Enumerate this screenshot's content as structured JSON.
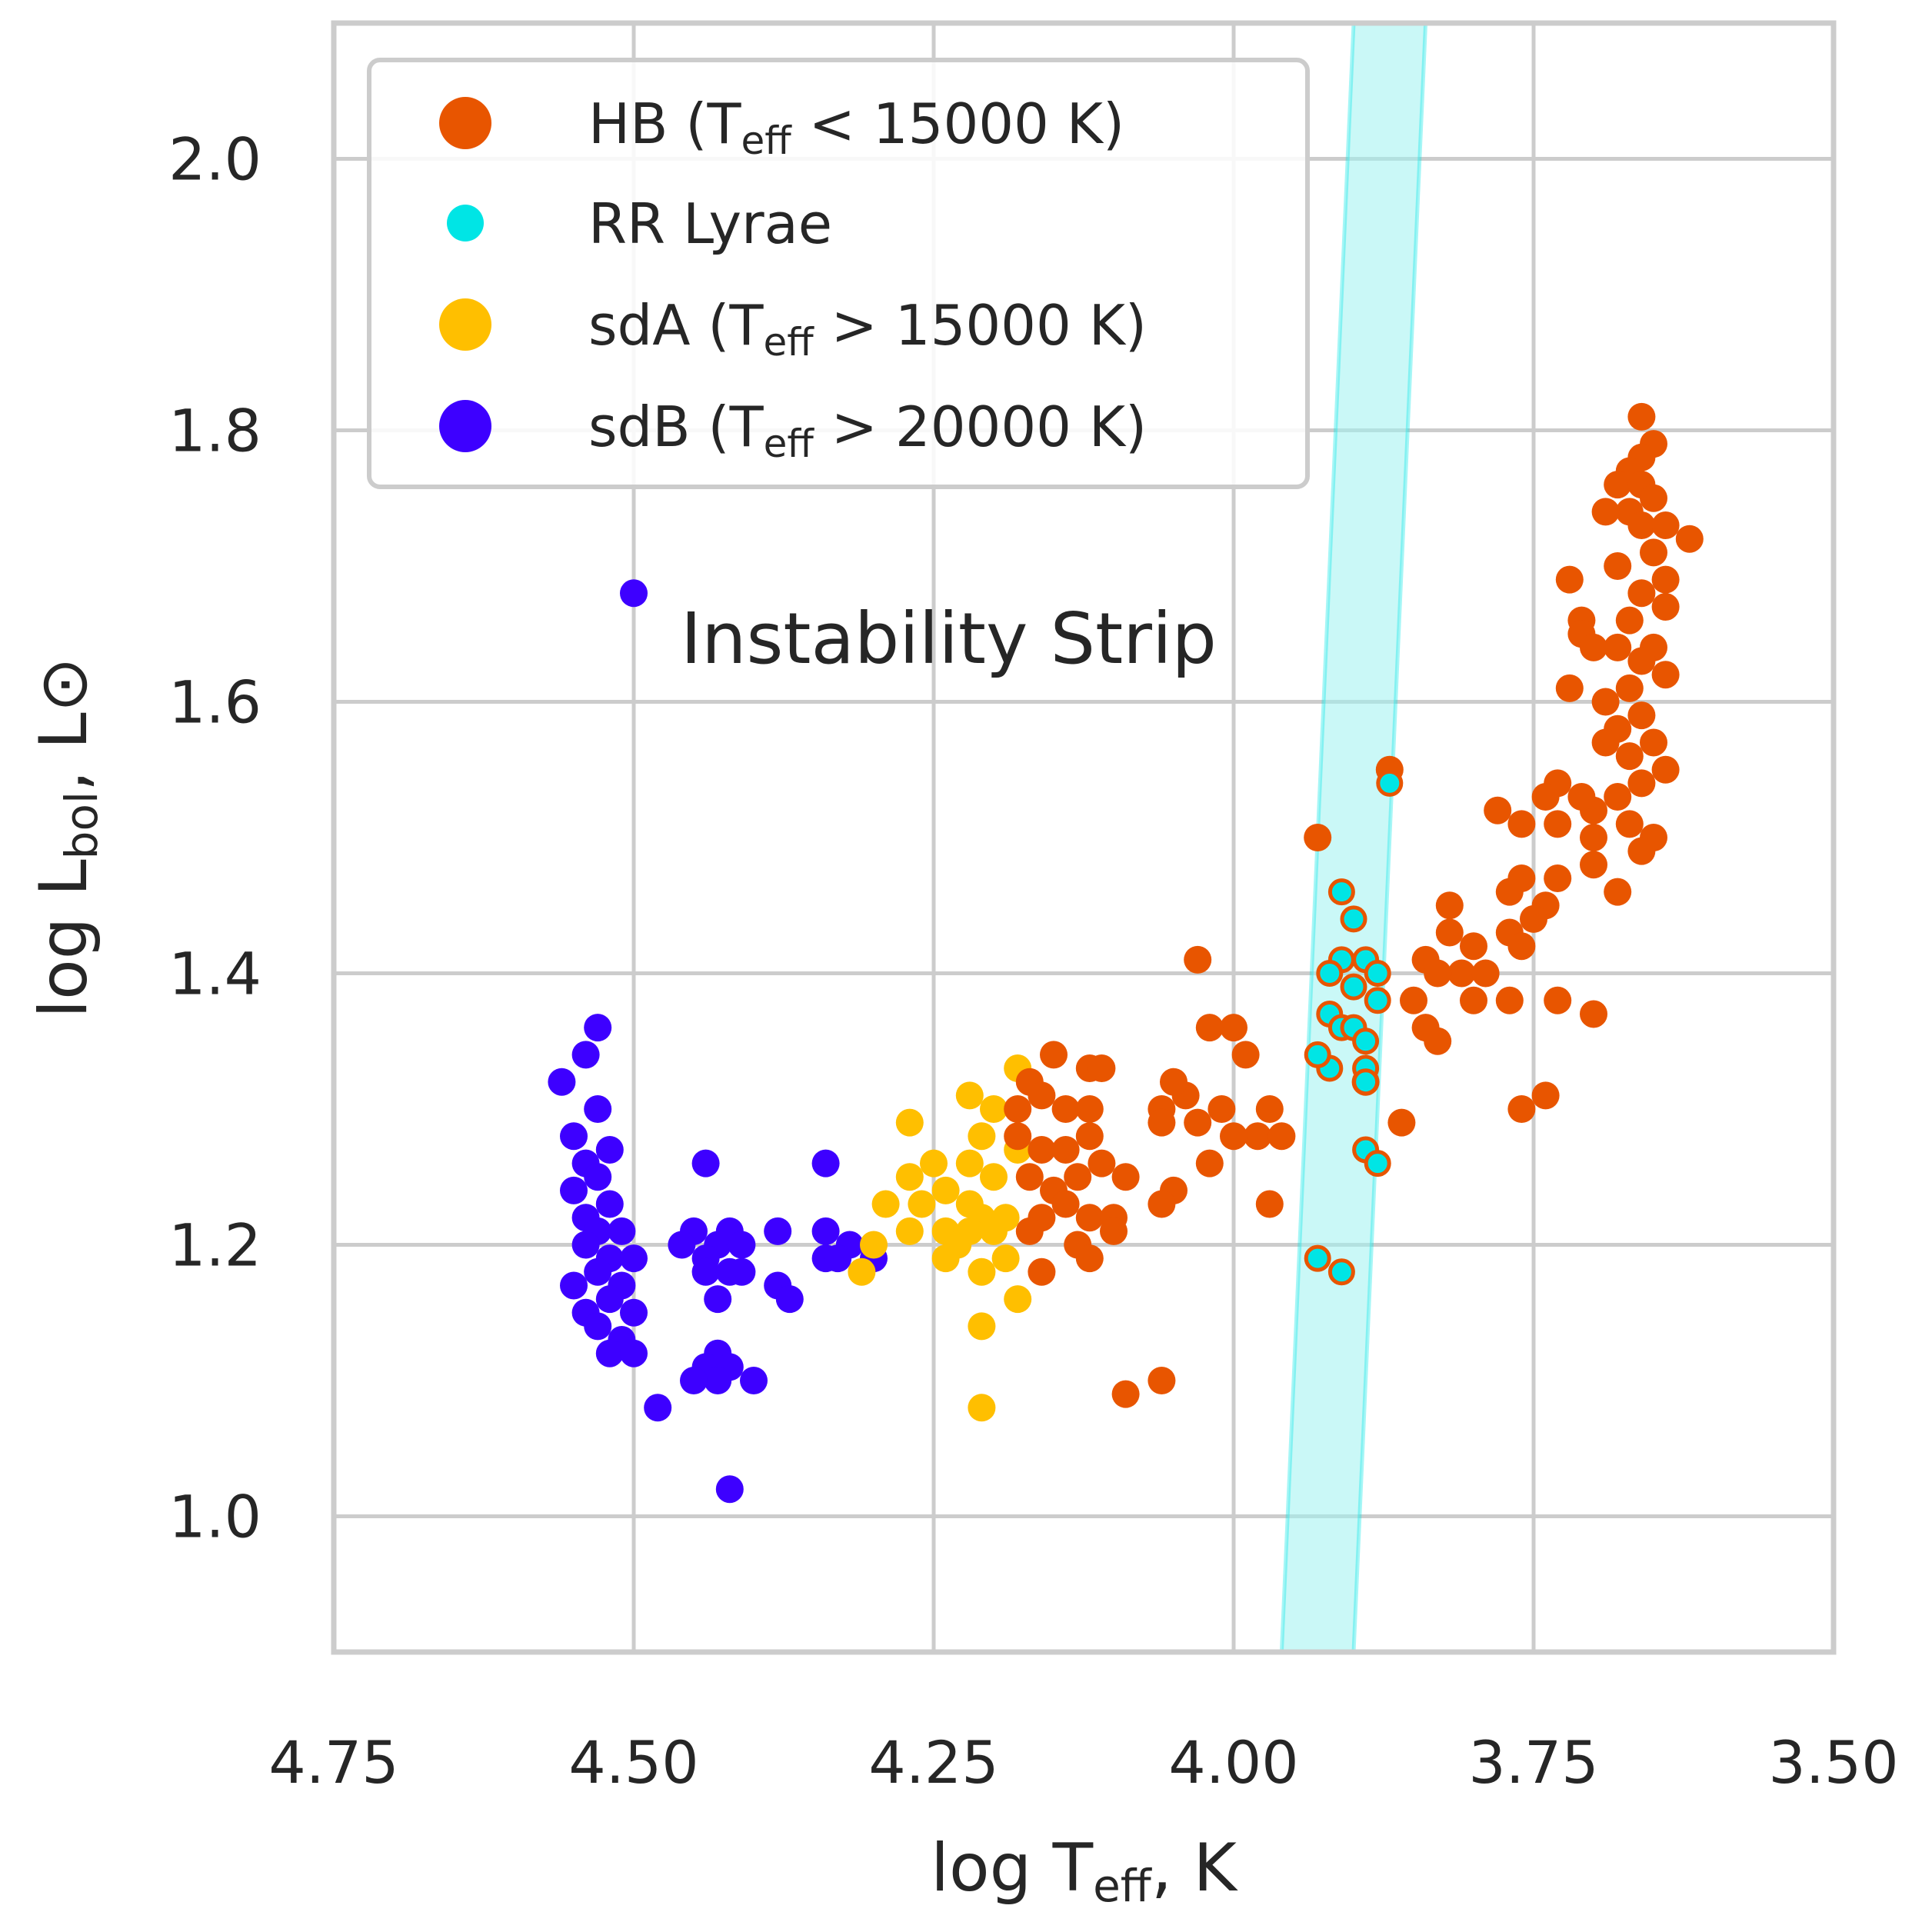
{
  "chart_data": {
    "type": "scatter",
    "title": "",
    "xlabel": "log T",
    "xlabel_sub": "eff",
    "xlabel_suffix": ", K",
    "ylabel": "log L",
    "ylabel_sub": "bol",
    "ylabel_suffix": ", L⊙",
    "xlim": [
      4.75,
      3.5
    ],
    "ylim": [
      0.9,
      2.1
    ],
    "xticks": [
      4.75,
      4.5,
      4.25,
      4.0,
      3.75,
      3.5
    ],
    "xtick_labels": [
      "4.75",
      "4.50",
      "4.25",
      "4.00",
      "3.75",
      "3.50"
    ],
    "yticks": [
      1.0,
      1.2,
      1.4,
      1.6,
      1.8,
      2.0
    ],
    "ytick_labels": [
      "1.0",
      "1.2",
      "1.4",
      "1.6",
      "1.8",
      "2.0"
    ],
    "grid": true,
    "legend_position": "top-left",
    "annotation": {
      "text": "Instability Strip",
      "x": 4.05,
      "y": 1.64
    },
    "band": {
      "label": "Instability Strip",
      "color": "#9ff3f0",
      "edge_color": "#00e5e5",
      "left_edge": [
        [
          3.96,
          0.9
        ],
        [
          3.9,
          2.1
        ]
      ],
      "right_edge": [
        [
          3.9,
          0.9
        ],
        [
          3.84,
          2.1
        ]
      ]
    },
    "series": [
      {
        "name": "HB",
        "legend_main": "HB (T",
        "legend_sub": "eff",
        "legend_tail": " < 15000 K)",
        "color": "#e85500",
        "marker_size": "large",
        "points": [
          [
            3.66,
            1.81
          ],
          [
            3.65,
            1.79
          ],
          [
            3.66,
            1.78
          ],
          [
            3.67,
            1.77
          ],
          [
            3.68,
            1.76
          ],
          [
            3.66,
            1.76
          ],
          [
            3.65,
            1.75
          ],
          [
            3.67,
            1.74
          ],
          [
            3.69,
            1.74
          ],
          [
            3.66,
            1.73
          ],
          [
            3.64,
            1.73
          ],
          [
            3.62,
            1.72
          ],
          [
            3.65,
            1.71
          ],
          [
            3.68,
            1.7
          ],
          [
            3.64,
            1.69
          ],
          [
            3.66,
            1.68
          ],
          [
            3.64,
            1.67
          ],
          [
            3.67,
            1.66
          ],
          [
            3.65,
            1.64
          ],
          [
            3.68,
            1.64
          ],
          [
            3.66,
            1.63
          ],
          [
            3.64,
            1.62
          ],
          [
            3.67,
            1.61
          ],
          [
            3.69,
            1.6
          ],
          [
            3.66,
            1.59
          ],
          [
            3.68,
            1.58
          ],
          [
            3.65,
            1.57
          ],
          [
            3.67,
            1.56
          ],
          [
            3.64,
            1.55
          ],
          [
            3.66,
            1.54
          ],
          [
            3.68,
            1.53
          ],
          [
            3.7,
            1.52
          ],
          [
            3.67,
            1.51
          ],
          [
            3.65,
            1.5
          ],
          [
            3.66,
            1.49
          ],
          [
            3.72,
            1.69
          ],
          [
            3.71,
            1.66
          ],
          [
            3.71,
            1.65
          ],
          [
            3.7,
            1.64
          ],
          [
            3.72,
            1.61
          ],
          [
            3.69,
            1.57
          ],
          [
            3.73,
            1.54
          ],
          [
            3.74,
            1.53
          ],
          [
            3.71,
            1.53
          ],
          [
            3.73,
            1.51
          ],
          [
            3.76,
            1.51
          ],
          [
            3.78,
            1.52
          ],
          [
            3.7,
            1.5
          ],
          [
            3.76,
            1.47
          ],
          [
            3.73,
            1.47
          ],
          [
            3.74,
            1.45
          ],
          [
            3.77,
            1.46
          ],
          [
            3.75,
            1.44
          ],
          [
            3.77,
            1.43
          ],
          [
            3.76,
            1.42
          ],
          [
            3.7,
            1.48
          ],
          [
            3.68,
            1.46
          ],
          [
            3.82,
            1.45
          ],
          [
            3.82,
            1.43
          ],
          [
            3.8,
            1.42
          ],
          [
            3.81,
            1.4
          ],
          [
            3.84,
            1.41
          ],
          [
            3.83,
            1.4
          ],
          [
            3.79,
            1.4
          ],
          [
            3.8,
            1.38
          ],
          [
            3.85,
            1.38
          ],
          [
            3.84,
            1.36
          ],
          [
            3.83,
            1.35
          ],
          [
            3.77,
            1.38
          ],
          [
            3.73,
            1.38
          ],
          [
            3.7,
            1.37
          ],
          [
            3.76,
            1.3
          ],
          [
            3.74,
            1.31
          ],
          [
            3.86,
            1.29
          ],
          [
            3.89,
            1.32
          ],
          [
            3.93,
            1.5
          ],
          [
            3.87,
            1.55
          ],
          [
            3.99,
            1.34
          ],
          [
            3.98,
            1.28
          ],
          [
            3.97,
            1.3
          ],
          [
            3.96,
            1.28
          ],
          [
            3.97,
            1.23
          ],
          [
            4.0,
            1.36
          ],
          [
            4.02,
            1.36
          ],
          [
            4.01,
            1.3
          ],
          [
            4.0,
            1.28
          ],
          [
            4.02,
            1.26
          ],
          [
            4.03,
            1.29
          ],
          [
            4.04,
            1.31
          ],
          [
            4.05,
            1.32
          ],
          [
            4.06,
            1.3
          ],
          [
            4.06,
            1.29
          ],
          [
            4.05,
            1.24
          ],
          [
            4.06,
            1.23
          ],
          [
            4.03,
            1.41
          ],
          [
            4.15,
            1.34
          ],
          [
            4.12,
            1.33
          ],
          [
            4.11,
            1.33
          ],
          [
            4.17,
            1.32
          ],
          [
            4.18,
            1.3
          ],
          [
            4.16,
            1.31
          ],
          [
            4.14,
            1.3
          ],
          [
            4.12,
            1.3
          ],
          [
            4.18,
            1.28
          ],
          [
            4.16,
            1.27
          ],
          [
            4.14,
            1.27
          ],
          [
            4.12,
            1.28
          ],
          [
            4.17,
            1.25
          ],
          [
            4.15,
            1.24
          ],
          [
            4.13,
            1.25
          ],
          [
            4.11,
            1.26
          ],
          [
            4.09,
            1.25
          ],
          [
            4.16,
            1.22
          ],
          [
            4.14,
            1.23
          ],
          [
            4.12,
            1.22
          ],
          [
            4.1,
            1.22
          ],
          [
            4.17,
            1.21
          ],
          [
            4.13,
            1.2
          ],
          [
            4.12,
            1.19
          ],
          [
            4.1,
            1.21
          ],
          [
            4.16,
            1.18
          ],
          [
            4.09,
            1.09
          ],
          [
            4.06,
            1.1
          ]
        ]
      },
      {
        "name": "RR Lyrae",
        "legend_main": "RR Lyrae",
        "legend_sub": "",
        "legend_tail": "",
        "color": "#00e5e5",
        "edge_color": "#e85500",
        "marker_size": "small",
        "points": [
          [
            3.87,
            1.54
          ],
          [
            3.91,
            1.46
          ],
          [
            3.9,
            1.44
          ],
          [
            3.91,
            1.41
          ],
          [
            3.92,
            1.4
          ],
          [
            3.89,
            1.41
          ],
          [
            3.88,
            1.4
          ],
          [
            3.9,
            1.39
          ],
          [
            3.88,
            1.38
          ],
          [
            3.92,
            1.37
          ],
          [
            3.91,
            1.36
          ],
          [
            3.9,
            1.36
          ],
          [
            3.89,
            1.35
          ],
          [
            3.92,
            1.33
          ],
          [
            3.89,
            1.33
          ],
          [
            3.89,
            1.32
          ],
          [
            3.89,
            1.27
          ],
          [
            3.88,
            1.26
          ],
          [
            3.93,
            1.19
          ],
          [
            3.91,
            1.18
          ],
          [
            3.93,
            1.34
          ]
        ]
      },
      {
        "name": "sdA",
        "legend_main": "sdA (T",
        "legend_sub": "eff",
        "legend_tail": " > 15000 K)",
        "color": "#ffbf00",
        "marker_size": "large",
        "points": [
          [
            4.18,
            1.33
          ],
          [
            4.22,
            1.31
          ],
          [
            4.27,
            1.29
          ],
          [
            4.2,
            1.3
          ],
          [
            4.21,
            1.28
          ],
          [
            4.18,
            1.27
          ],
          [
            4.22,
            1.26
          ],
          [
            4.2,
            1.25
          ],
          [
            4.25,
            1.26
          ],
          [
            4.27,
            1.25
          ],
          [
            4.24,
            1.24
          ],
          [
            4.26,
            1.23
          ],
          [
            4.22,
            1.23
          ],
          [
            4.29,
            1.23
          ],
          [
            4.21,
            1.22
          ],
          [
            4.19,
            1.22
          ],
          [
            4.24,
            1.21
          ],
          [
            4.22,
            1.21
          ],
          [
            4.2,
            1.21
          ],
          [
            4.27,
            1.21
          ],
          [
            4.23,
            1.2
          ],
          [
            4.3,
            1.2
          ],
          [
            4.19,
            1.19
          ],
          [
            4.24,
            1.19
          ],
          [
            4.21,
            1.18
          ],
          [
            4.31,
            1.18
          ],
          [
            4.18,
            1.16
          ],
          [
            4.21,
            1.14
          ],
          [
            4.21,
            1.08
          ]
        ]
      },
      {
        "name": "sdB",
        "legend_main": "sdB (T",
        "legend_sub": "eff",
        "legend_tail": " > 20000 K)",
        "color": "#3d00ff",
        "marker_size": "large",
        "points": [
          [
            4.5,
            1.68
          ],
          [
            4.53,
            1.36
          ],
          [
            4.54,
            1.34
          ],
          [
            4.56,
            1.32
          ],
          [
            4.53,
            1.3
          ],
          [
            4.55,
            1.28
          ],
          [
            4.52,
            1.27
          ],
          [
            4.54,
            1.26
          ],
          [
            4.53,
            1.25
          ],
          [
            4.55,
            1.24
          ],
          [
            4.52,
            1.23
          ],
          [
            4.54,
            1.22
          ],
          [
            4.53,
            1.21
          ],
          [
            4.51,
            1.21
          ],
          [
            4.54,
            1.2
          ],
          [
            4.52,
            1.19
          ],
          [
            4.5,
            1.19
          ],
          [
            4.53,
            1.18
          ],
          [
            4.55,
            1.17
          ],
          [
            4.51,
            1.17
          ],
          [
            4.52,
            1.16
          ],
          [
            4.54,
            1.15
          ],
          [
            4.5,
            1.15
          ],
          [
            4.53,
            1.14
          ],
          [
            4.51,
            1.13
          ],
          [
            4.52,
            1.12
          ],
          [
            4.5,
            1.12
          ],
          [
            4.48,
            1.08
          ],
          [
            4.44,
            1.26
          ],
          [
            4.45,
            1.21
          ],
          [
            4.46,
            1.2
          ],
          [
            4.43,
            1.2
          ],
          [
            4.44,
            1.19
          ],
          [
            4.42,
            1.21
          ],
          [
            4.41,
            1.2
          ],
          [
            4.44,
            1.18
          ],
          [
            4.42,
            1.18
          ],
          [
            4.43,
            1.16
          ],
          [
            4.41,
            1.18
          ],
          [
            4.38,
            1.21
          ],
          [
            4.38,
            1.17
          ],
          [
            4.37,
            1.16
          ],
          [
            4.34,
            1.26
          ],
          [
            4.34,
            1.21
          ],
          [
            4.32,
            1.2
          ],
          [
            4.34,
            1.19
          ],
          [
            4.33,
            1.19
          ],
          [
            4.3,
            1.19
          ],
          [
            4.43,
            1.12
          ],
          [
            4.44,
            1.11
          ],
          [
            4.42,
            1.11
          ],
          [
            4.43,
            1.1
          ],
          [
            4.45,
            1.1
          ],
          [
            4.4,
            1.1
          ],
          [
            4.42,
            1.02
          ]
        ]
      }
    ]
  }
}
